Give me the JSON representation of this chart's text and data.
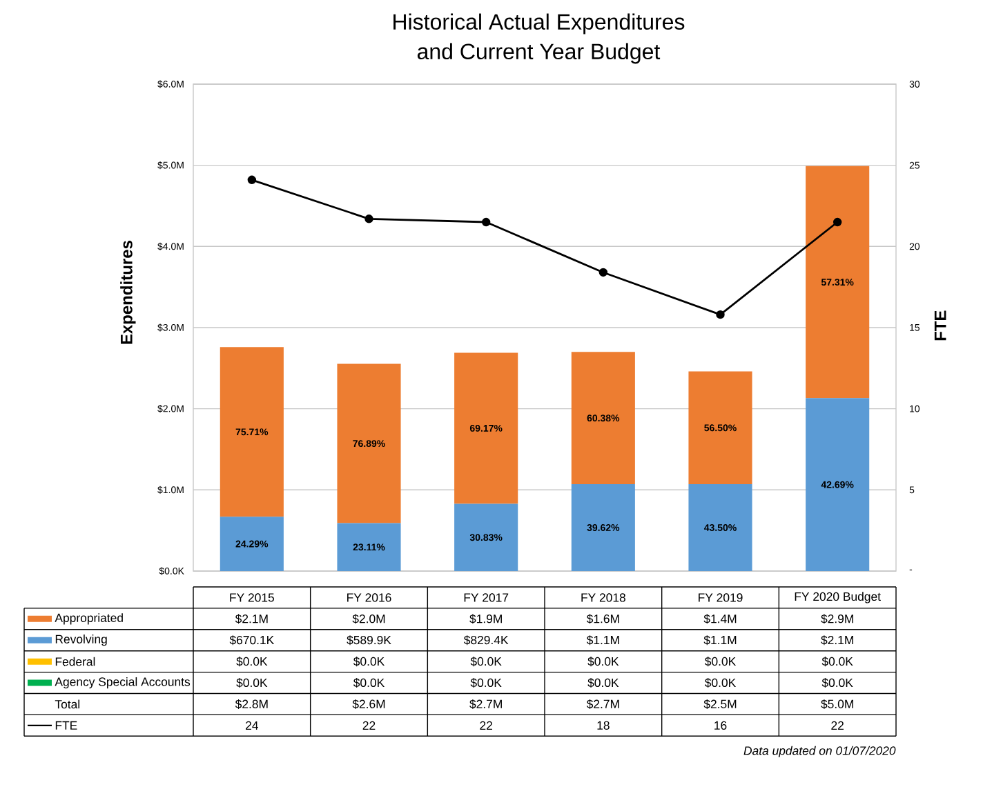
{
  "chart_data": {
    "type": "bar",
    "title": "Historical Actual Expenditures and Current Year Budget",
    "ylabel": "Expenditures",
    "y2label": "FTE",
    "categories": [
      "FY 2015",
      "FY 2016",
      "FY 2017",
      "FY 2018",
      "FY 2019",
      "FY 2020 Budget"
    ],
    "stacked": true,
    "series": [
      {
        "name": "Revolving",
        "color": "#5b9bd5",
        "values": [
          670100,
          589900,
          829400,
          1070000,
          1070000,
          2130000
        ],
        "value_labels": [
          "$670.1K",
          "$589.9K",
          "$829.4K",
          "$1.1M",
          "$1.1M",
          "$2.1M"
        ]
      },
      {
        "name": "Appropriated",
        "color": "#ed7d31",
        "values": [
          2089000,
          1963000,
          1861000,
          1630000,
          1390000,
          2860000
        ],
        "value_labels": [
          "$2.1M",
          "$2.0M",
          "$1.9M",
          "$1.6M",
          "$1.4M",
          "$2.9M"
        ]
      },
      {
        "name": "Federal",
        "color": "#ffc000",
        "values": [
          0,
          0,
          0,
          0,
          0,
          0
        ],
        "value_labels": [
          "$0.0K",
          "$0.0K",
          "$0.0K",
          "$0.0K",
          "$0.0K",
          "$0.0K"
        ]
      },
      {
        "name": "Agency Special Accounts",
        "color": "#00b050",
        "values": [
          0,
          0,
          0,
          0,
          0,
          0
        ],
        "value_labels": [
          "$0.0K",
          "$0.0K",
          "$0.0K",
          "$0.0K",
          "$0.0K",
          "$0.0K"
        ]
      },
      {
        "name": "FTE",
        "type": "line",
        "axis": "y2",
        "color": "#000000",
        "marker": "circle",
        "values": [
          24.1,
          21.7,
          21.5,
          18.4,
          15.8,
          21.5
        ],
        "value_labels": [
          "24",
          "22",
          "22",
          "18",
          "16",
          "22"
        ]
      }
    ],
    "ylim": [
      0,
      6000000
    ],
    "yticks": [
      {
        "value": 0,
        "label": "$0.0K"
      },
      {
        "value": 1000000,
        "label": "$1.0M"
      },
      {
        "value": 2000000,
        "label": "$2.0M"
      },
      {
        "value": 3000000,
        "label": "$3.0M"
      },
      {
        "value": 4000000,
        "label": "$4.0M"
      },
      {
        "value": 5000000,
        "label": "$5.0M"
      },
      {
        "value": 6000000,
        "label": "$6.0M"
      }
    ],
    "y2lim": [
      0,
      30
    ],
    "y2ticks": [
      {
        "value": 0,
        "label": "-"
      },
      5,
      10,
      15,
      20,
      25,
      30
    ],
    "grid": true,
    "legend": "bottom",
    "annotations": [
      "24.29%",
      "75.71%",
      "23.11%",
      "76.89%",
      "30.83%",
      "69.17%",
      "39.62%",
      "60.38%",
      "43.50%",
      "56.50%",
      "42.69%",
      "57.31%",
      "Total",
      "$2.8M",
      "$2.6M",
      "$2.7M",
      "$2.7M",
      "$2.5M",
      "$5.0M",
      "Data updated on 01/07/2020"
    ]
  }
}
